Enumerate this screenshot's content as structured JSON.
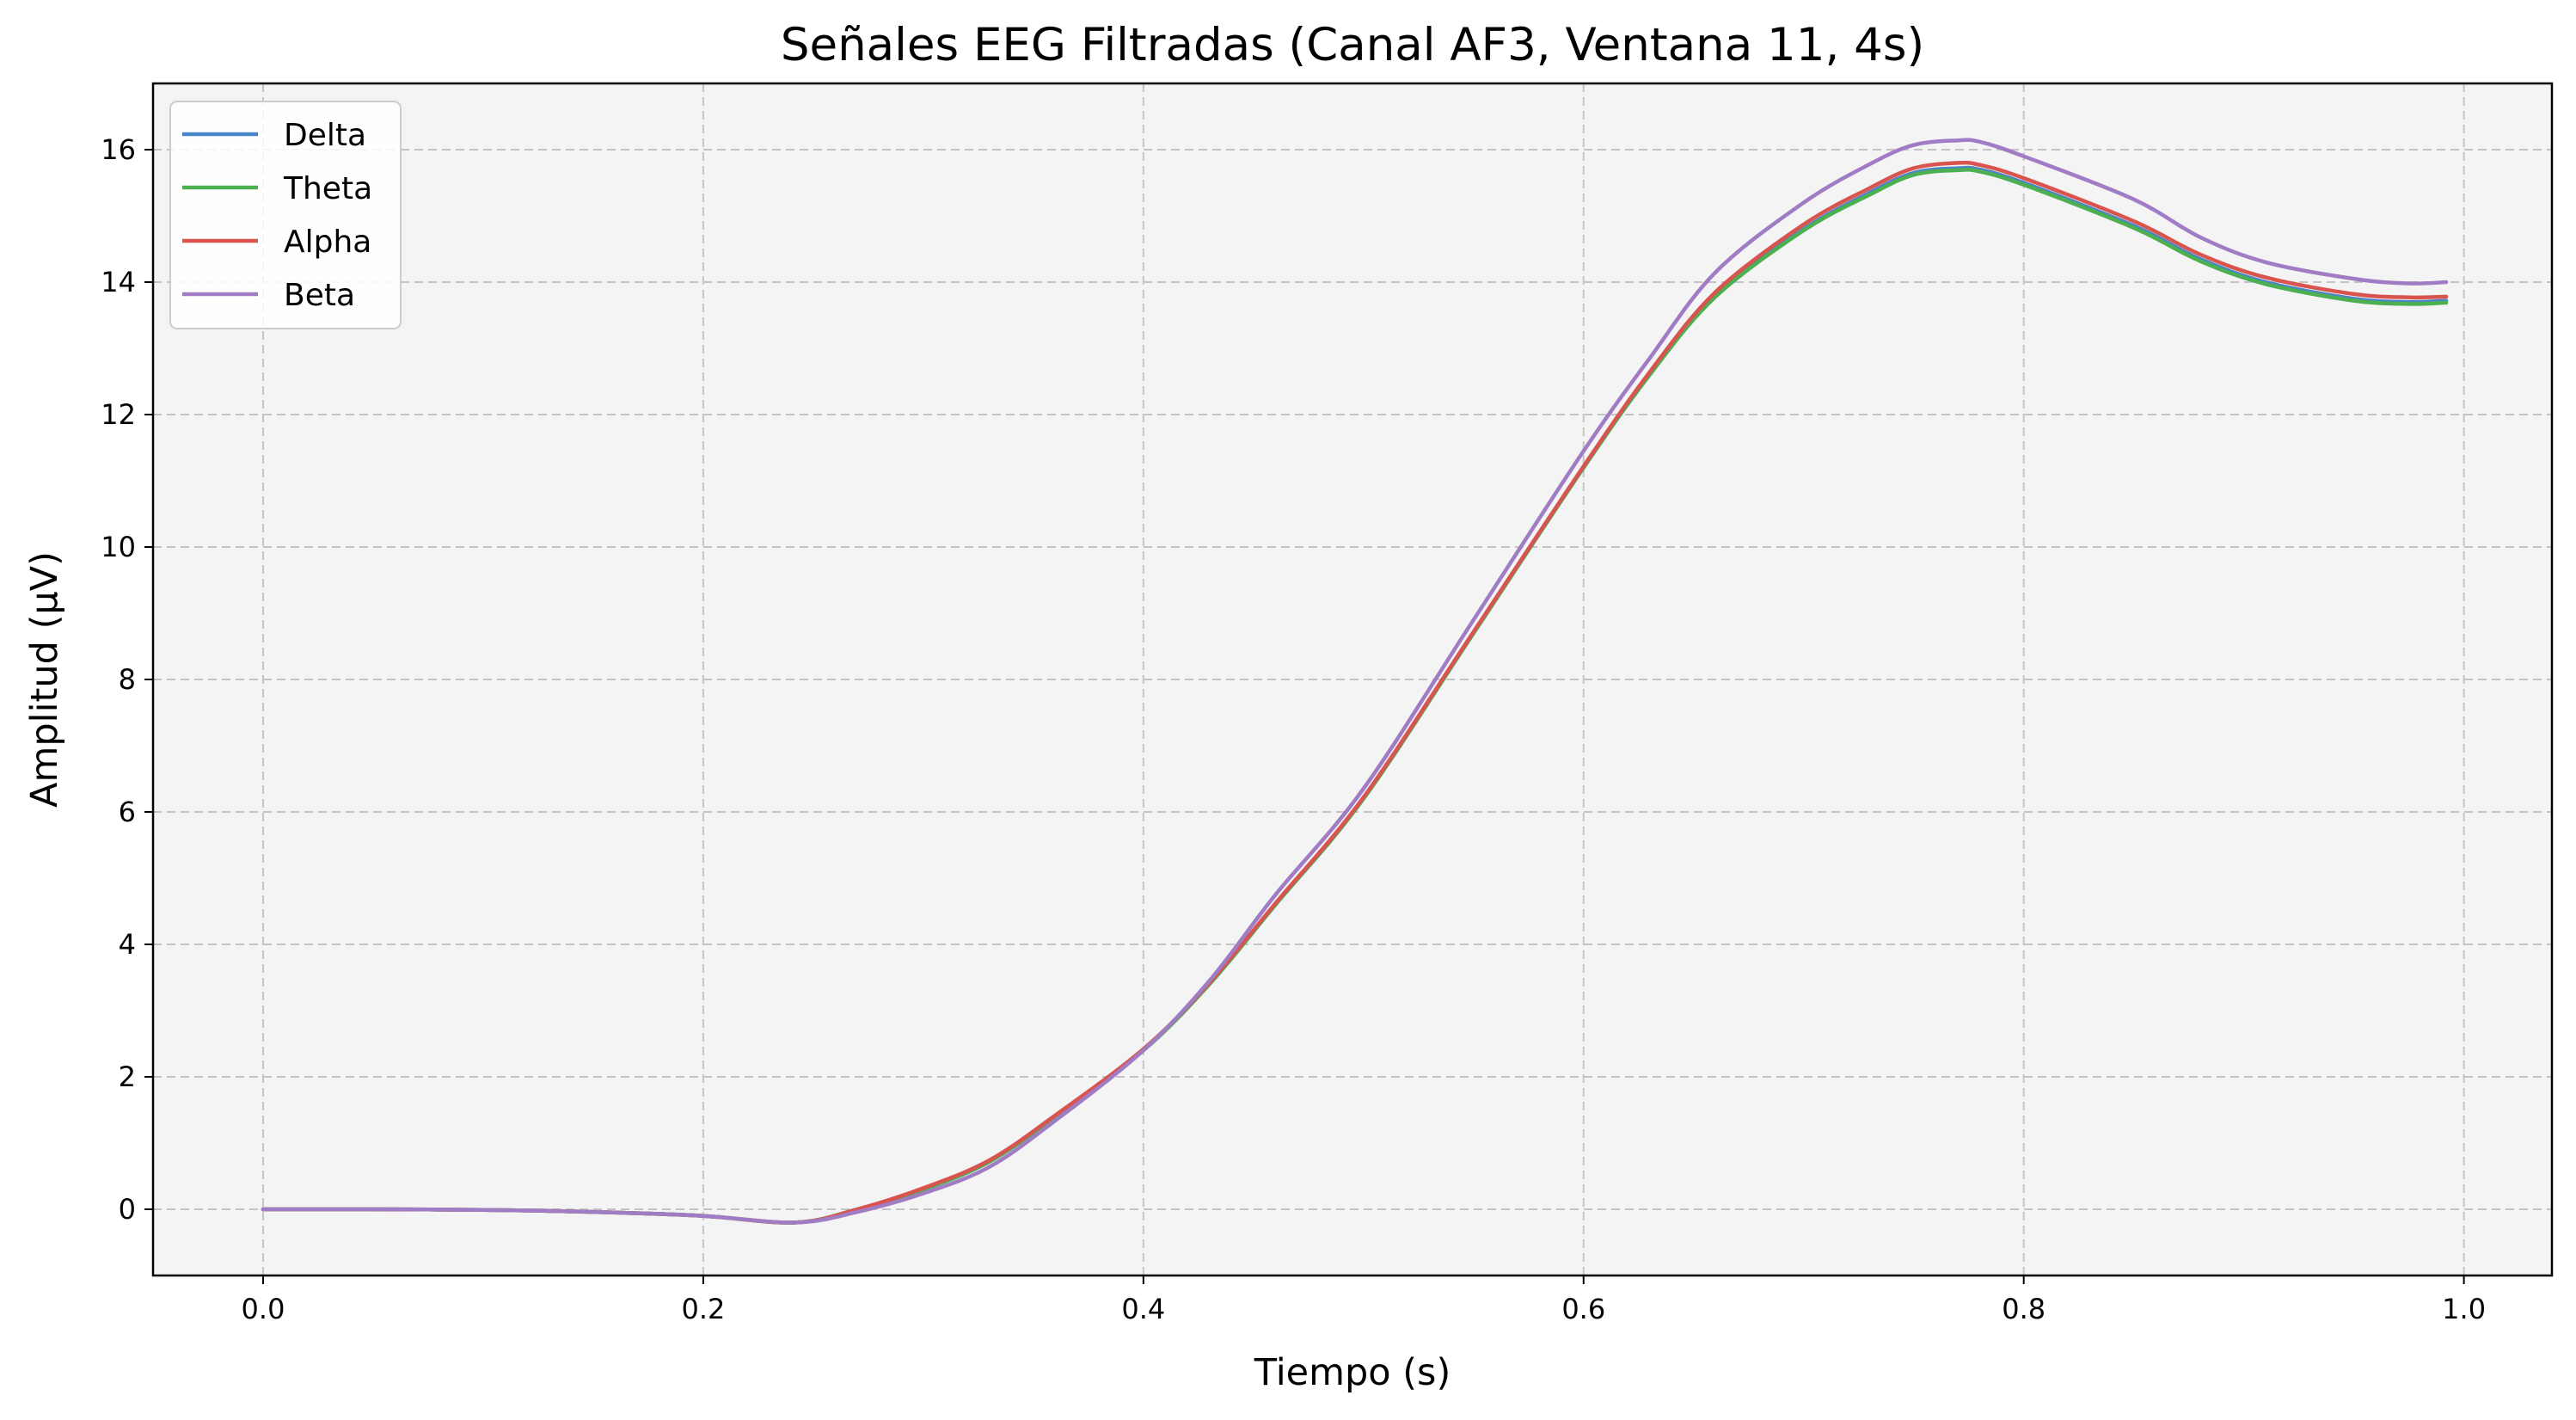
{
  "chart_data": {
    "type": "line",
    "title": "Señales EEG Filtradas (Canal AF3, Ventana 11, 4s)",
    "xlabel": "Tiempo (s)",
    "ylabel": "Amplitud (µV)",
    "xlim": [
      -0.05,
      1.04
    ],
    "ylim": [
      -1,
      17
    ],
    "xticks": [
      0.0,
      0.2,
      0.4,
      0.6,
      0.8,
      1.0
    ],
    "xtick_labels": [
      "0.0",
      "0.2",
      "0.4",
      "0.6",
      "0.8",
      "1.0"
    ],
    "yticks": [
      0,
      2,
      4,
      6,
      8,
      10,
      12,
      14,
      16
    ],
    "ytick_labels": [
      "0",
      "2",
      "4",
      "6",
      "8",
      "10",
      "12",
      "14",
      "16"
    ],
    "grid": true,
    "legend_position": "top-left",
    "background_color": "#f4f4f4",
    "x": [
      0.0,
      0.05,
      0.1,
      0.15,
      0.2,
      0.242,
      0.27,
      0.3,
      0.33,
      0.36,
      0.4,
      0.43,
      0.46,
      0.5,
      0.55,
      0.6,
      0.63,
      0.66,
      0.7,
      0.73,
      0.75,
      0.77,
      0.78,
      0.8,
      0.85,
      0.88,
      0.91,
      0.95,
      0.975,
      0.992
    ],
    "series": [
      {
        "name": "Delta",
        "color": "#4a86c5",
        "values": [
          0.0,
          0.0,
          -0.01,
          -0.04,
          -0.1,
          -0.2,
          0.0,
          0.3,
          0.72,
          1.4,
          2.4,
          3.4,
          4.6,
          6.2,
          8.7,
          11.2,
          12.6,
          13.8,
          14.8,
          15.35,
          15.65,
          15.72,
          15.7,
          15.5,
          14.85,
          14.35,
          14.0,
          13.75,
          13.7,
          13.72
        ]
      },
      {
        "name": "Theta",
        "color": "#4caf50",
        "values": [
          0.0,
          0.0,
          -0.01,
          -0.04,
          -0.1,
          -0.2,
          0.0,
          0.3,
          0.72,
          1.4,
          2.4,
          3.4,
          4.6,
          6.2,
          8.7,
          11.2,
          12.6,
          13.78,
          14.78,
          15.32,
          15.62,
          15.69,
          15.67,
          15.47,
          14.82,
          14.32,
          13.97,
          13.72,
          13.67,
          13.69
        ]
      },
      {
        "name": "Alpha",
        "color": "#d9534f",
        "values": [
          0.0,
          0.0,
          -0.01,
          -0.04,
          -0.1,
          -0.2,
          0.0,
          0.32,
          0.74,
          1.42,
          2.42,
          3.42,
          4.62,
          6.22,
          8.72,
          11.22,
          12.64,
          13.85,
          14.87,
          15.42,
          15.72,
          15.8,
          15.77,
          15.57,
          14.92,
          14.42,
          14.07,
          13.82,
          13.77,
          13.78
        ]
      },
      {
        "name": "Beta",
        "color": "#a07cc5",
        "values": [
          0.0,
          0.0,
          -0.01,
          -0.04,
          -0.1,
          -0.2,
          -0.04,
          0.24,
          0.64,
          1.34,
          2.4,
          3.45,
          4.75,
          6.35,
          8.9,
          11.45,
          12.85,
          14.15,
          15.2,
          15.78,
          16.07,
          16.14,
          16.12,
          15.9,
          15.25,
          14.68,
          14.3,
          14.05,
          13.98,
          14.0
        ]
      }
    ]
  }
}
